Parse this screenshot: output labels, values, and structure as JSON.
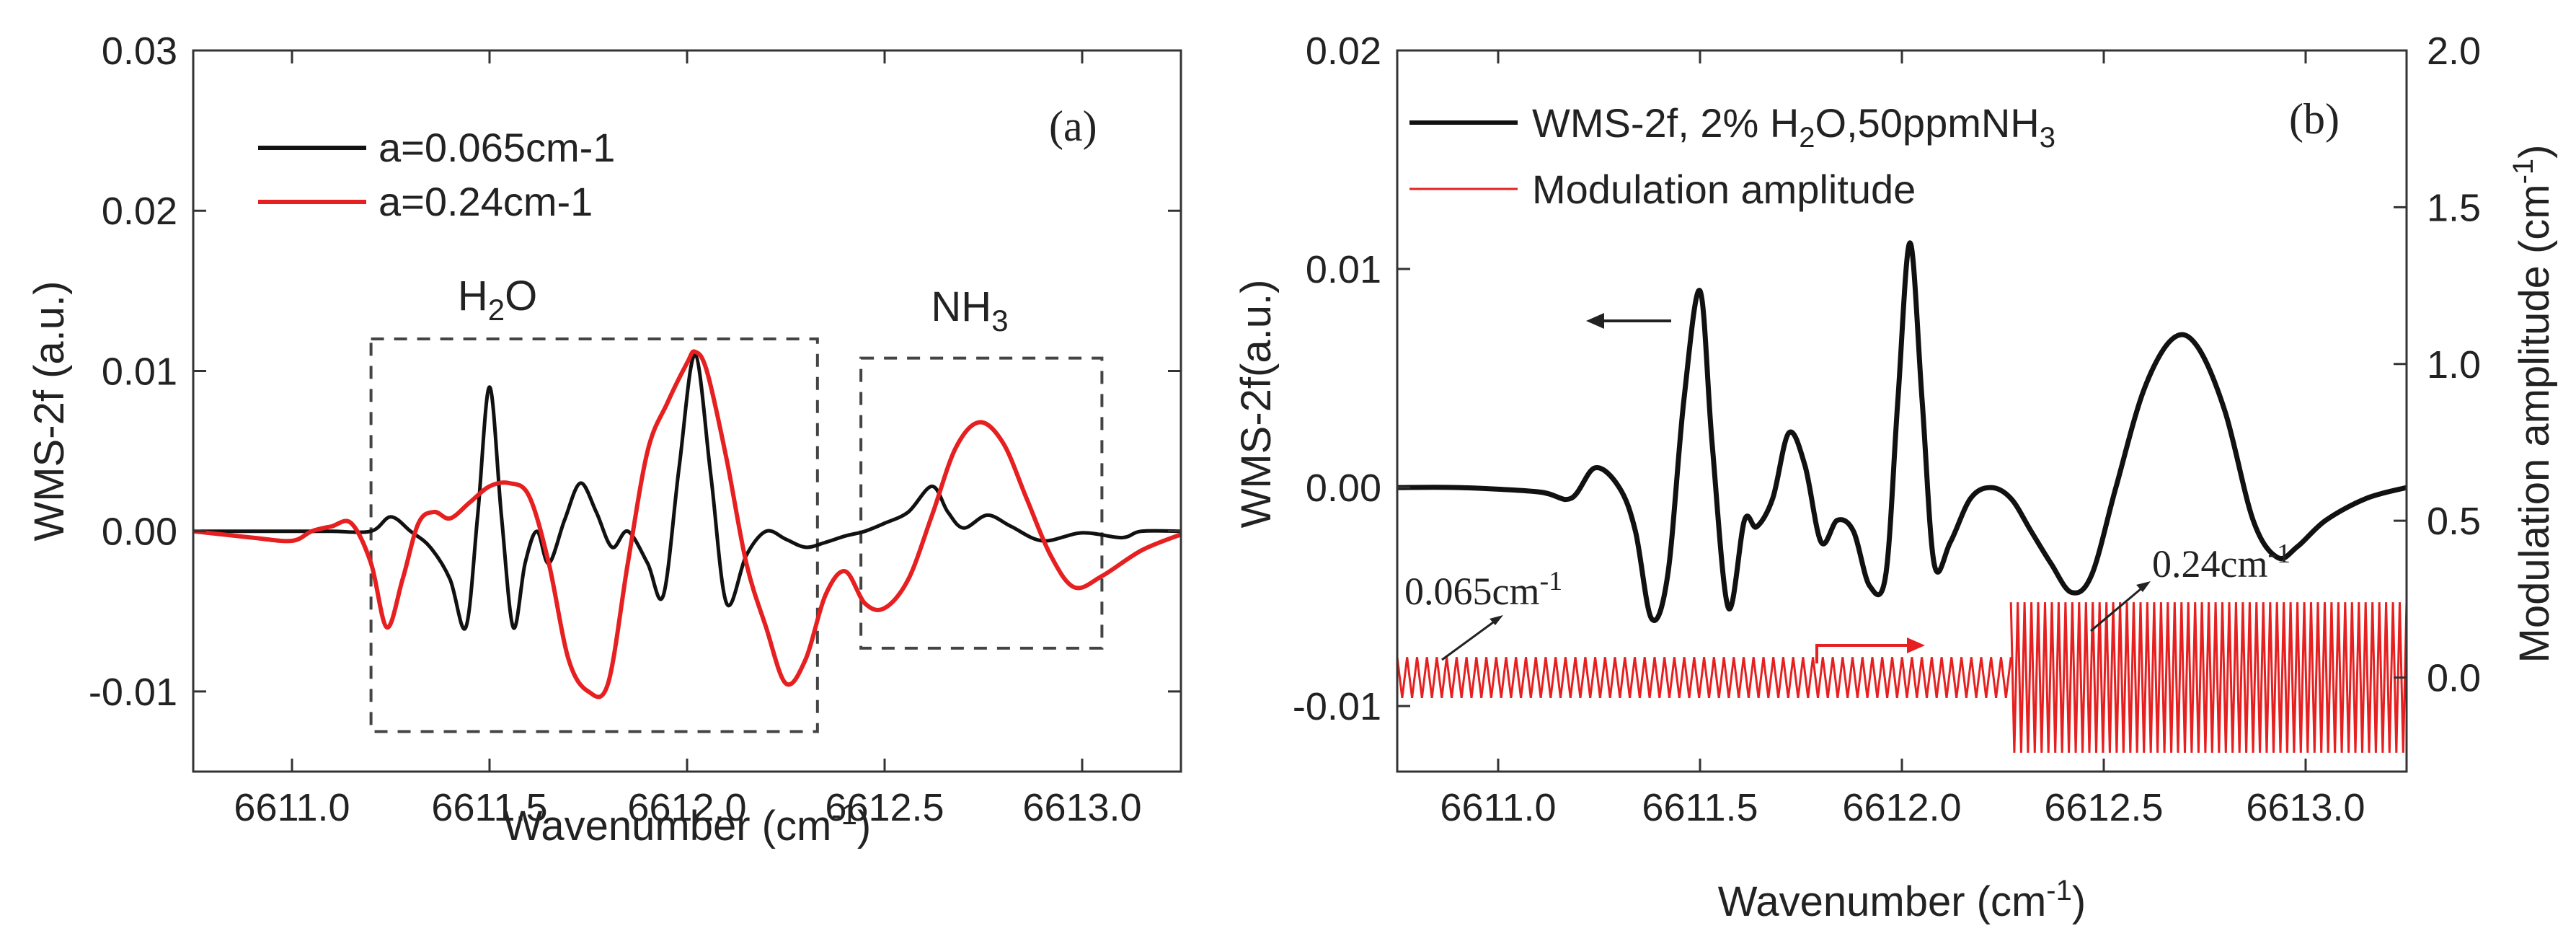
{
  "chart_data": [
    {
      "panel": "a",
      "type": "line",
      "panel_label": "(a)",
      "xlabel": "Wavenumber (cm",
      "xlabel_sup": "-1",
      "xlabel_end": ")",
      "ylabel": "WMS-2f (a.u.)",
      "xlim": [
        6610.75,
        6613.25
      ],
      "ylim": [
        -0.015,
        0.03
      ],
      "xticks": [
        6611.0,
        6611.5,
        6612.0,
        6612.5,
        6613.0
      ],
      "xtick_labels": [
        "6611.0",
        "6611.5",
        "6612.0",
        "6612.5",
        "6613.0"
      ],
      "yticks": [
        -0.01,
        0.0,
        0.01,
        0.02,
        0.03
      ],
      "ytick_labels": [
        "-0.01",
        "0.00",
        "0.01",
        "0.02",
        "0.03"
      ],
      "annotations": {
        "h2o": {
          "main": "H",
          "sub": "2",
          "end": "O"
        },
        "nh3": {
          "main": "NH",
          "sub": "3",
          "end": ""
        }
      },
      "regions": [
        {
          "name": "h2o-box",
          "x": [
            6611.2,
            6612.33
          ],
          "y": [
            -0.0125,
            0.012
          ]
        },
        {
          "name": "nh3-box",
          "x": [
            6612.44,
            6613.05
          ],
          "y": [
            -0.0073,
            0.0108
          ]
        }
      ],
      "series": [
        {
          "name": "a=0.065cm-1",
          "color": "#111111",
          "x": [
            6610.75,
            6611.0,
            6611.1,
            6611.2,
            6611.25,
            6611.3,
            6611.35,
            6611.4,
            6611.44,
            6611.47,
            6611.5,
            6611.53,
            6611.56,
            6611.59,
            6611.62,
            6611.65,
            6611.69,
            6611.73,
            6611.77,
            6611.81,
            6611.85,
            6611.9,
            6611.94,
            6611.98,
            6612.02,
            6612.06,
            6612.1,
            6612.15,
            6612.2,
            6612.25,
            6612.3,
            6612.35,
            6612.4,
            6612.45,
            6612.5,
            6612.56,
            6612.62,
            6612.66,
            6612.7,
            6612.76,
            6612.82,
            6612.9,
            6613.0,
            6613.1,
            6613.15,
            6613.25
          ],
          "y": [
            0.0,
            0.0,
            0.0,
            0.0,
            0.0009,
            0.0,
            -0.001,
            -0.003,
            -0.006,
            0.001,
            0.009,
            0.001,
            -0.006,
            -0.002,
            0.0,
            -0.002,
            0.0007,
            0.003,
            0.0012,
            -0.001,
            0.0,
            -0.002,
            -0.004,
            0.004,
            0.011,
            0.0035,
            -0.0045,
            -0.0015,
            0.0,
            -0.0005,
            -0.001,
            -0.0007,
            -0.0003,
            0.0,
            0.0005,
            0.0012,
            0.0028,
            0.0012,
            0.0002,
            0.001,
            0.0003,
            -0.0006,
            -0.0001,
            -0.0004,
            0.0,
            0.0
          ]
        },
        {
          "name": "a=0.24cm-1",
          "color": "#e62020",
          "x": [
            6610.75,
            6610.9,
            6611.0,
            6611.05,
            6611.1,
            6611.15,
            6611.2,
            6611.24,
            6611.28,
            6611.32,
            6611.36,
            6611.4,
            6611.45,
            6611.5,
            6611.55,
            6611.6,
            6611.65,
            6611.7,
            6611.75,
            6611.8,
            6611.85,
            6611.9,
            6611.95,
            6612.0,
            6612.02,
            6612.05,
            6612.1,
            6612.15,
            6612.2,
            6612.25,
            6612.3,
            6612.35,
            6612.4,
            6612.45,
            6612.5,
            6612.56,
            6612.62,
            6612.68,
            6612.74,
            6612.8,
            6612.86,
            6612.92,
            6612.98,
            6613.05,
            6613.15,
            6613.25
          ],
          "y": [
            0.0,
            -0.0004,
            -0.0006,
            0.0,
            0.0003,
            0.0005,
            -0.002,
            -0.006,
            -0.003,
            0.0005,
            0.0012,
            0.0008,
            0.0018,
            0.0028,
            0.003,
            0.0022,
            -0.002,
            -0.008,
            -0.01,
            -0.0095,
            -0.002,
            0.005,
            0.008,
            0.0105,
            0.0112,
            0.01,
            0.0045,
            -0.002,
            -0.006,
            -0.0095,
            -0.008,
            -0.004,
            -0.0025,
            -0.0045,
            -0.0048,
            -0.003,
            0.001,
            0.0052,
            0.0068,
            0.0055,
            0.002,
            -0.0015,
            -0.0035,
            -0.0028,
            -0.0012,
            -0.0002
          ]
        }
      ]
    },
    {
      "panel": "b",
      "type": "line",
      "panel_label": "(b)",
      "xlabel": "Wavenumber (cm",
      "xlabel_sup": "-1",
      "xlabel_end": ")",
      "ylabel": "WMS-2f(a.u.)",
      "y2label": "Modulation amplitude (cm",
      "y2label_sup": "-1",
      "y2label_end": ")",
      "xlim": [
        6610.75,
        6613.25
      ],
      "ylim": [
        -0.013,
        0.02
      ],
      "y2lim": [
        -0.3,
        2.0
      ],
      "xticks": [
        6611.0,
        6611.5,
        6612.0,
        6612.5,
        6613.0
      ],
      "xtick_labels": [
        "6611.0",
        "6611.5",
        "6612.0",
        "6612.5",
        "6613.0"
      ],
      "yticks": [
        -0.01,
        0.0,
        0.01,
        0.02
      ],
      "ytick_labels": [
        "-0.01",
        "0.00",
        "0.01",
        "0.02"
      ],
      "y2ticks": [
        0.0,
        0.5,
        1.0,
        1.5,
        2.0
      ],
      "y2tick_labels": [
        "0.0",
        "0.5",
        "1.0",
        "1.5",
        "2.0"
      ],
      "legend": {
        "wms": {
          "pre": "WMS-2f, 2% H",
          "sub1": "2",
          "mid": "O,50ppmNH",
          "sub2": "3"
        },
        "mod": {
          "text": "Modulation amplitude"
        }
      },
      "annotations": {
        "low": {
          "text": "0.065cm",
          "sup": "-1"
        },
        "high": {
          "text": "0.24cm",
          "sup": "-1"
        }
      },
      "modulation": {
        "color": "#e62020",
        "switch_x": 6612.27,
        "low_amp": 0.065,
        "high_amp": 0.24,
        "low_cycles": 62,
        "high_cycles": 58,
        "center": 0.0
      },
      "series": [
        {
          "name": "WMS-2f, 2% H2O,50ppmNH3",
          "color": "#111111",
          "x": [
            6610.75,
            6610.9,
            6611.1,
            6611.18,
            6611.24,
            6611.3,
            6611.34,
            6611.38,
            6611.42,
            6611.46,
            6611.5,
            6611.53,
            6611.57,
            6611.61,
            6611.64,
            6611.68,
            6611.72,
            6611.76,
            6611.8,
            6611.84,
            6611.88,
            6611.92,
            6611.96,
            6611.99,
            6612.02,
            6612.05,
            6612.08,
            6612.12,
            6612.17,
            6612.22,
            6612.27,
            6612.32,
            6612.37,
            6612.42,
            6612.47,
            6612.53,
            6612.6,
            6612.67,
            6612.73,
            6612.8,
            6612.87,
            6612.93,
            6612.98,
            6613.05,
            6613.15,
            6613.25
          ],
          "y": [
            0.0,
            0.0,
            -0.0002,
            -0.0005,
            0.0009,
            0.0,
            -0.002,
            -0.006,
            -0.004,
            0.004,
            0.009,
            0.002,
            -0.0055,
            -0.0015,
            -0.0018,
            -0.0005,
            0.0025,
            0.001,
            -0.0025,
            -0.0015,
            -0.002,
            -0.0045,
            -0.004,
            0.004,
            0.0112,
            0.004,
            -0.0035,
            -0.0025,
            -0.0005,
            0.0,
            -0.0005,
            -0.002,
            -0.0035,
            -0.0048,
            -0.004,
            0.0,
            0.0045,
            0.0068,
            0.0065,
            0.0035,
            -0.0015,
            -0.0032,
            -0.0027,
            -0.0015,
            -0.0005,
            0.0
          ]
        }
      ]
    }
  ]
}
